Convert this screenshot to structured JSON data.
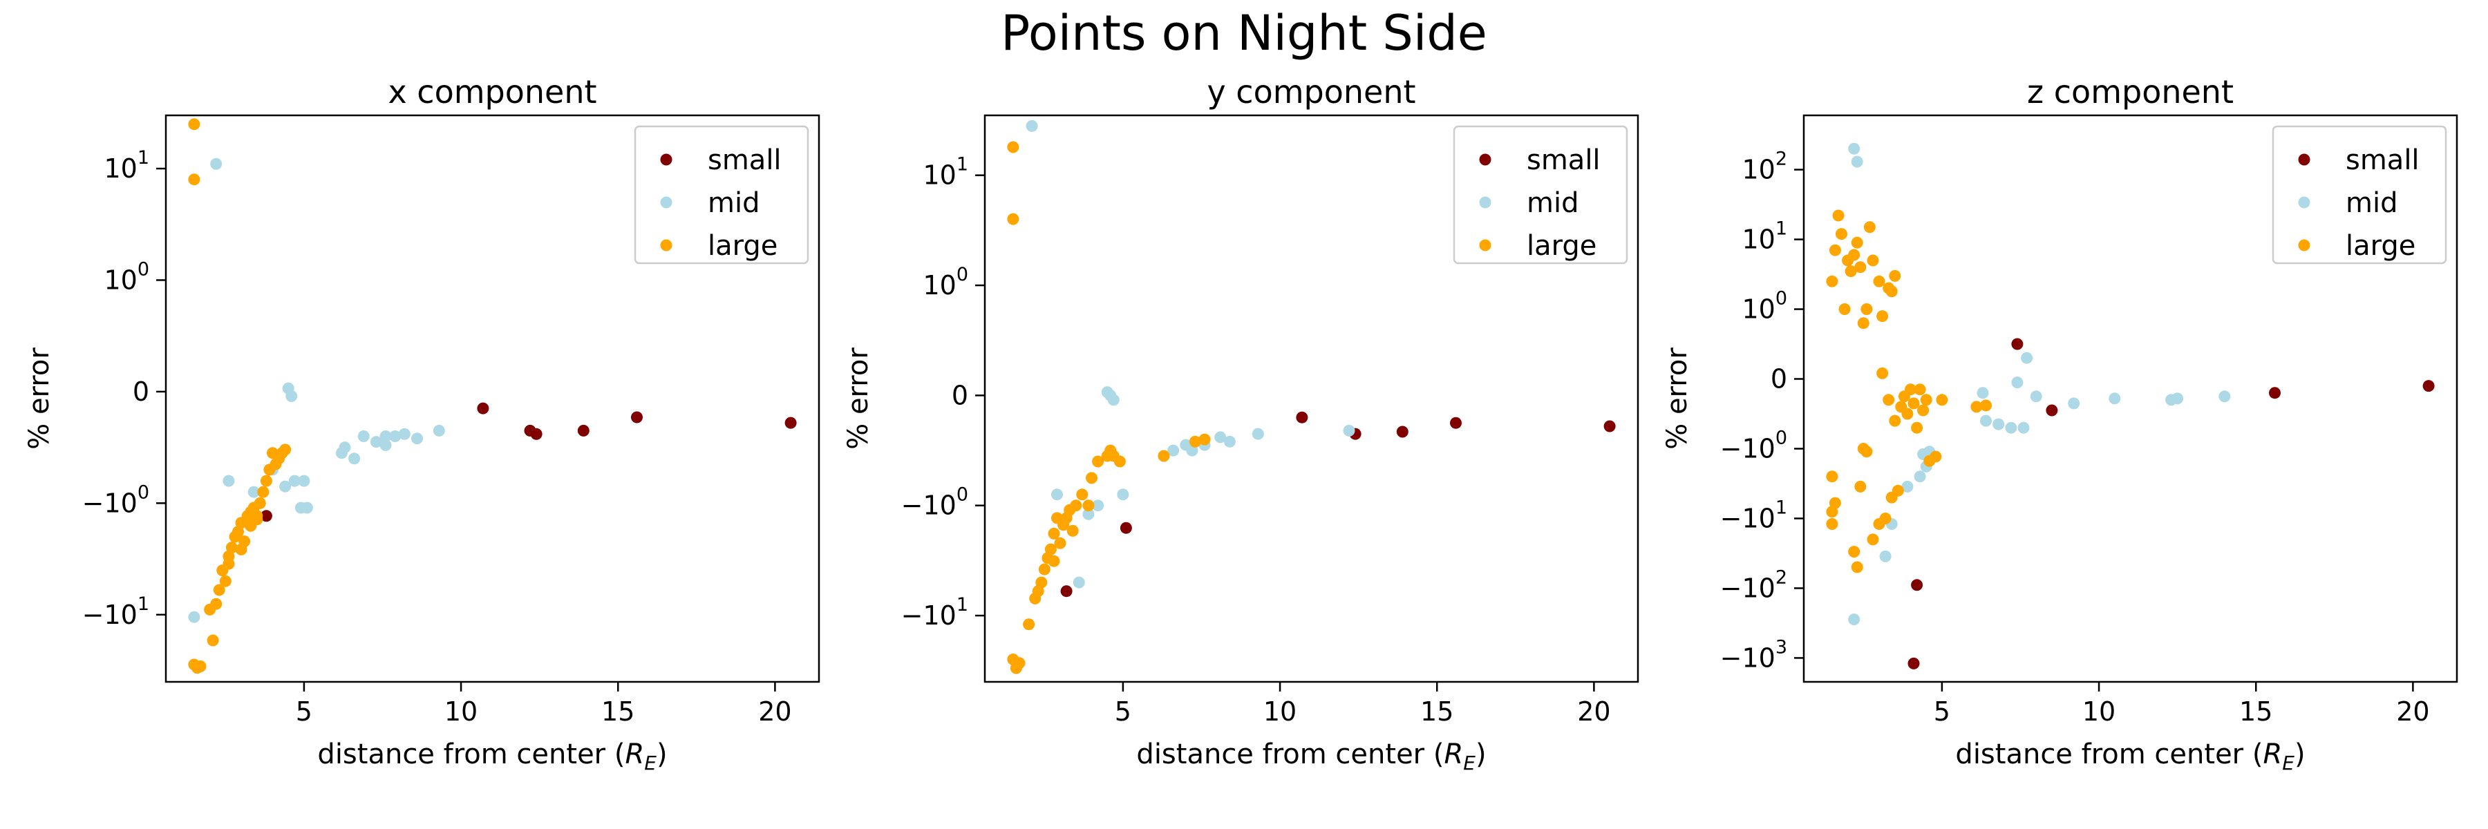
{
  "title": "Points on Night Side",
  "colors": {
    "small": "#800000",
    "mid": "#add8e6",
    "large": "#ffa500"
  },
  "chart_data": [
    {
      "type": "scatter",
      "title": "x component",
      "xlabel": "distance from center (R_E)",
      "ylabel": "% error",
      "xlim": [
        0.6,
        21.4
      ],
      "ylim": [
        -40,
        30
      ],
      "yscale": "symlog",
      "xticks": [
        5,
        10,
        15,
        20
      ],
      "yticks": [
        {
          "v": 10,
          "base": "10",
          "exp": "1"
        },
        {
          "v": 1,
          "base": "10",
          "exp": "0"
        },
        {
          "v": 0,
          "base": "0",
          "exp": ""
        },
        {
          "v": -1,
          "base": "−10",
          "exp": "0"
        },
        {
          "v": -10,
          "base": "−10",
          "exp": "1"
        }
      ],
      "legend": {
        "position": "top-right",
        "entries": [
          "small",
          "mid",
          "large"
        ]
      },
      "series": [
        {
          "name": "small",
          "points": [
            [
              3.8,
              -1.3
            ],
            [
              10.7,
              -0.15
            ],
            [
              12.2,
              -0.35
            ],
            [
              12.4,
              -0.38
            ],
            [
              13.9,
              -0.35
            ],
            [
              15.6,
              -0.23
            ],
            [
              20.5,
              -0.28
            ]
          ]
        },
        {
          "name": "mid",
          "points": [
            [
              1.5,
              -10.5
            ],
            [
              2.2,
              11
            ],
            [
              2.6,
              -0.8
            ],
            [
              3.4,
              -0.9
            ],
            [
              4.0,
              -0.7
            ],
            [
              4.4,
              -0.85
            ],
            [
              4.5,
              0.03
            ],
            [
              4.6,
              -0.04
            ],
            [
              4.7,
              -0.8
            ],
            [
              4.9,
              -1.1
            ],
            [
              5.0,
              -0.8
            ],
            [
              5.1,
              -1.1
            ],
            [
              6.2,
              -0.55
            ],
            [
              6.3,
              -0.5
            ],
            [
              6.6,
              -0.6
            ],
            [
              6.9,
              -0.4
            ],
            [
              7.3,
              -0.45
            ],
            [
              7.6,
              -0.4
            ],
            [
              7.6,
              -0.48
            ],
            [
              7.9,
              -0.4
            ],
            [
              8.2,
              -0.38
            ],
            [
              8.6,
              -0.42
            ],
            [
              9.3,
              -0.35
            ]
          ]
        },
        {
          "name": "large",
          "points": [
            [
              1.5,
              25
            ],
            [
              1.5,
              8
            ],
            [
              1.5,
              -28
            ],
            [
              1.6,
              -30
            ],
            [
              1.7,
              -29
            ],
            [
              2.0,
              -9
            ],
            [
              2.1,
              -17
            ],
            [
              2.2,
              -8
            ],
            [
              2.3,
              -6
            ],
            [
              2.4,
              -4
            ],
            [
              2.5,
              -5
            ],
            [
              2.6,
              -3
            ],
            [
              2.7,
              -2.5
            ],
            [
              2.8,
              -2
            ],
            [
              2.9,
              -1.8
            ],
            [
              3.0,
              -1.5
            ],
            [
              3.1,
              -2.2
            ],
            [
              3.2,
              -1.3
            ],
            [
              3.3,
              -1.2
            ],
            [
              3.4,
              -1.1
            ],
            [
              3.5,
              -1.3
            ],
            [
              3.6,
              -1.0
            ],
            [
              3.7,
              -0.9
            ],
            [
              3.8,
              -0.8
            ],
            [
              3.9,
              -0.7
            ],
            [
              4.0,
              -0.55
            ],
            [
              4.1,
              -0.65
            ],
            [
              4.2,
              -0.6
            ],
            [
              4.3,
              -0.55
            ],
            [
              4.4,
              -0.52
            ],
            [
              2.6,
              -3.5
            ],
            [
              3.0,
              -2.6
            ],
            [
              3.3,
              -1.6
            ],
            [
              3.5,
              -1.4
            ]
          ]
        }
      ]
    },
    {
      "type": "scatter",
      "title": "y component",
      "xlabel": "distance from center (R_E)",
      "ylabel": "% error",
      "xlim": [
        0.6,
        21.4
      ],
      "ylim": [
        -40,
        35
      ],
      "yscale": "symlog",
      "xticks": [
        5,
        10,
        15,
        20
      ],
      "yticks": [
        {
          "v": 10,
          "base": "10",
          "exp": "1"
        },
        {
          "v": 1,
          "base": "10",
          "exp": "0"
        },
        {
          "v": 0,
          "base": "0",
          "exp": ""
        },
        {
          "v": -1,
          "base": "−10",
          "exp": "0"
        },
        {
          "v": -10,
          "base": "−10",
          "exp": "1"
        }
      ],
      "legend": {
        "position": "top-right",
        "entries": [
          "small",
          "mid",
          "large"
        ]
      },
      "series": [
        {
          "name": "small",
          "points": [
            [
              3.2,
              -6
            ],
            [
              5.1,
              -1.6
            ],
            [
              10.7,
              -0.2
            ],
            [
              12.4,
              -0.35
            ],
            [
              13.9,
              -0.33
            ],
            [
              15.6,
              -0.25
            ],
            [
              20.5,
              -0.28
            ]
          ]
        },
        {
          "name": "mid",
          "points": [
            [
              2.1,
              28
            ],
            [
              2.9,
              -0.9
            ],
            [
              3.6,
              -5
            ],
            [
              3.9,
              -1.2
            ],
            [
              4.2,
              -1.0
            ],
            [
              4.5,
              0.03
            ],
            [
              4.6,
              0.0
            ],
            [
              4.7,
              -0.04
            ],
            [
              5.0,
              -0.9
            ],
            [
              6.3,
              -0.55
            ],
            [
              6.6,
              -0.5
            ],
            [
              7.0,
              -0.45
            ],
            [
              7.2,
              -0.5
            ],
            [
              7.6,
              -0.45
            ],
            [
              8.1,
              -0.38
            ],
            [
              8.4,
              -0.42
            ],
            [
              9.3,
              -0.35
            ],
            [
              12.2,
              -0.32
            ]
          ]
        },
        {
          "name": "large",
          "points": [
            [
              1.5,
              18
            ],
            [
              1.5,
              4
            ],
            [
              1.5,
              -25
            ],
            [
              1.6,
              -30
            ],
            [
              1.7,
              -27
            ],
            [
              2.0,
              -12
            ],
            [
              2.2,
              -7
            ],
            [
              2.3,
              -6
            ],
            [
              2.4,
              -5
            ],
            [
              2.5,
              -3.8
            ],
            [
              2.6,
              -3
            ],
            [
              2.7,
              -2.5
            ],
            [
              2.8,
              -1.8
            ],
            [
              2.9,
              -1.3
            ],
            [
              3.0,
              -2.2
            ],
            [
              3.1,
              -1.5
            ],
            [
              3.2,
              -1.3
            ],
            [
              3.3,
              -1.1
            ],
            [
              3.5,
              -1.0
            ],
            [
              3.7,
              -0.9
            ],
            [
              4.0,
              -0.75
            ],
            [
              4.2,
              -0.6
            ],
            [
              4.5,
              -0.55
            ],
            [
              4.6,
              -0.5
            ],
            [
              4.7,
              -0.55
            ],
            [
              4.9,
              -0.6
            ],
            [
              6.3,
              -0.55
            ],
            [
              7.3,
              -0.42
            ],
            [
              7.6,
              -0.4
            ],
            [
              2.8,
              -3.2
            ],
            [
              3.4,
              -1.7
            ],
            [
              3.9,
              -1.0
            ]
          ]
        }
      ]
    },
    {
      "type": "scatter",
      "title": "z component",
      "xlabel": "distance from center (R_E)",
      "ylabel": "% error",
      "xlim": [
        0.6,
        21.4
      ],
      "ylim": [
        -2200,
        600
      ],
      "yscale": "symlog",
      "xticks": [
        5,
        10,
        15,
        20
      ],
      "yticks": [
        {
          "v": 100,
          "base": "10",
          "exp": "2"
        },
        {
          "v": 10,
          "base": "10",
          "exp": "1"
        },
        {
          "v": 1,
          "base": "10",
          "exp": "0"
        },
        {
          "v": 0,
          "base": "0",
          "exp": ""
        },
        {
          "v": -1,
          "base": "−10",
          "exp": "0"
        },
        {
          "v": -10,
          "base": "−10",
          "exp": "1"
        },
        {
          "v": -100,
          "base": "−10",
          "exp": "2"
        },
        {
          "v": -1000,
          "base": "−10",
          "exp": "3"
        }
      ],
      "legend": {
        "position": "top-right",
        "entries": [
          "small",
          "mid",
          "large"
        ]
      },
      "series": [
        {
          "name": "small",
          "points": [
            [
              4.1,
              -1200
            ],
            [
              4.2,
              -90
            ],
            [
              7.4,
              0.5
            ],
            [
              8.5,
              -0.45
            ],
            [
              15.6,
              -0.2
            ],
            [
              20.5,
              -0.1
            ]
          ]
        },
        {
          "name": "mid",
          "points": [
            [
              2.2,
              -280
            ],
            [
              2.2,
              200
            ],
            [
              2.3,
              130
            ],
            [
              3.2,
              -35
            ],
            [
              3.4,
              -12
            ],
            [
              3.9,
              -3.5
            ],
            [
              4.3,
              -2.5
            ],
            [
              4.4,
              -1.2
            ],
            [
              4.5,
              -1.8
            ],
            [
              4.6,
              -1.1
            ],
            [
              6.3,
              -0.2
            ],
            [
              6.4,
              -0.6
            ],
            [
              6.8,
              -0.65
            ],
            [
              7.2,
              -0.7
            ],
            [
              7.4,
              -0.05
            ],
            [
              7.6,
              -0.7
            ],
            [
              7.7,
              0.3
            ],
            [
              8.0,
              -0.25
            ],
            [
              9.2,
              -0.35
            ],
            [
              10.5,
              -0.28
            ],
            [
              12.3,
              -0.3
            ],
            [
              12.5,
              -0.28
            ],
            [
              14.0,
              -0.25
            ]
          ]
        },
        {
          "name": "large",
          "points": [
            [
              1.5,
              2.5
            ],
            [
              1.6,
              7
            ],
            [
              1.7,
              22
            ],
            [
              1.8,
              12
            ],
            [
              1.9,
              1.0
            ],
            [
              2.0,
              5
            ],
            [
              2.1,
              3.5
            ],
            [
              2.2,
              6
            ],
            [
              2.3,
              9
            ],
            [
              2.4,
              4
            ],
            [
              2.5,
              0.8
            ],
            [
              2.6,
              1.0
            ],
            [
              2.7,
              15
            ],
            [
              2.8,
              5
            ],
            [
              3.0,
              2.5
            ],
            [
              3.1,
              0.9
            ],
            [
              3.3,
              2.0
            ],
            [
              3.4,
              1.8
            ],
            [
              3.5,
              3.0
            ],
            [
              1.5,
              -2.5
            ],
            [
              1.5,
              -8
            ],
            [
              1.5,
              -12
            ],
            [
              1.6,
              -6
            ],
            [
              2.2,
              -30
            ],
            [
              2.3,
              -50
            ],
            [
              2.4,
              -3.5
            ],
            [
              2.5,
              -1.0
            ],
            [
              2.6,
              -1.1
            ],
            [
              2.8,
              -20
            ],
            [
              3.0,
              -12
            ],
            [
              3.2,
              -10
            ],
            [
              3.4,
              -5
            ],
            [
              3.6,
              -4
            ],
            [
              3.1,
              0.08
            ],
            [
              3.3,
              -0.3
            ],
            [
              3.5,
              -0.6
            ],
            [
              3.7,
              -0.4
            ],
            [
              3.8,
              -0.25
            ],
            [
              3.9,
              -0.5
            ],
            [
              4.1,
              -0.35
            ],
            [
              4.3,
              -0.15
            ],
            [
              4.4,
              -0.45
            ],
            [
              4.5,
              -0.3
            ],
            [
              4.6,
              -1.5
            ],
            [
              4.8,
              -1.3
            ],
            [
              5.0,
              -0.3
            ],
            [
              6.1,
              -0.4
            ],
            [
              6.4,
              -0.38
            ],
            [
              4.0,
              -0.15
            ],
            [
              4.2,
              -0.7
            ]
          ]
        }
      ]
    }
  ]
}
